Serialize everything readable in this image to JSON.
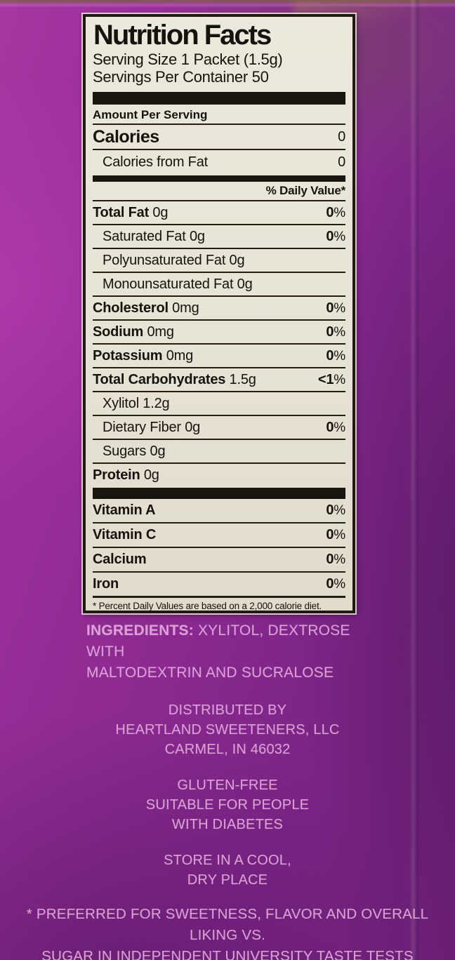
{
  "colors": {
    "purple_base": "#8f2b92",
    "purple_light": "#a637a3",
    "purple_dark": "#6f2079",
    "label_background": "#e9e5d8",
    "label_ink": "#17120e",
    "printed_pink": "#e2abd9"
  },
  "nutrition": {
    "title": "Nutrition Facts",
    "serving_size": "Serving Size 1 Packet (1.5g)",
    "servings_per_container": "Servings Per Container 50",
    "amount_per_serving": "Amount Per Serving",
    "calories_label": "Calories",
    "calories_value": "0",
    "calories_from_fat_label": "Calories from Fat",
    "calories_from_fat_value": "0",
    "daily_value_header": "% Daily Value*",
    "rows": [
      {
        "bold": "Total Fat",
        "plain": " 0g",
        "dv": "0%"
      },
      {
        "plain": "Saturated Fat 0g",
        "dv": "0%",
        "indent": true
      },
      {
        "plain": "Polyunsaturated Fat 0g",
        "indent": true
      },
      {
        "plain": "Monounsaturated Fat 0g",
        "indent": true
      },
      {
        "bold": "Cholesterol",
        "plain": " 0mg",
        "dv": "0%"
      },
      {
        "bold": "Sodium",
        "plain": " 0mg",
        "dv": "0%"
      },
      {
        "bold": "Potassium",
        "plain": " 0mg",
        "dv": "0%"
      },
      {
        "bold": "Total Carbohydrates",
        "plain": " 1.5g",
        "dv": "<1%"
      },
      {
        "plain": "Xylitol 1.2g",
        "indent": true
      },
      {
        "plain": "Dietary Fiber 0g",
        "dv": "0%",
        "indent": true
      },
      {
        "plain": "Sugars 0g",
        "indent": true
      },
      {
        "bold": "Protein",
        "plain": " 0g"
      }
    ],
    "vitamins": [
      {
        "bold": "Vitamin A",
        "dv": "0%"
      },
      {
        "bold": "Vitamin C",
        "dv": "0%"
      },
      {
        "bold": "Calcium",
        "dv": "0%"
      },
      {
        "bold": "Iron",
        "dv": "0%"
      }
    ],
    "footnote": "* Percent Daily Values are based on a 2,000 calorie diet."
  },
  "printed": {
    "ingredients_bold": "INGREDIENTS:",
    "ingredients_line1_rest": " XYLITOL, DEXTROSE WITH",
    "ingredients_line2": "MALTODEXTRIN AND SUCRALOSE",
    "distributed": [
      "DISTRIBUTED BY",
      "HEARTLAND SWEETENERS, LLC",
      "CARMEL, IN 46032"
    ],
    "dietary": [
      "GLUTEN-FREE",
      "SUITABLE FOR PEOPLE",
      "WITH DIABETES"
    ],
    "storage": [
      "STORE IN A COOL,",
      "DRY PLACE"
    ],
    "claim": [
      "* PREFERRED FOR SWEETNESS, FLAVOR AND OVERALL LIKING VS.",
      "SUGAR IN INDEPENDENT UNIVERSITY TASTE TESTS"
    ]
  }
}
